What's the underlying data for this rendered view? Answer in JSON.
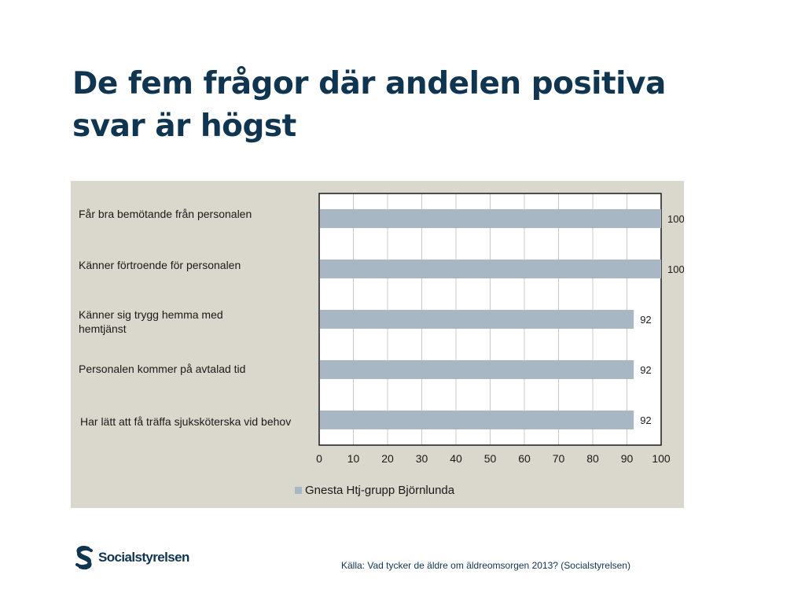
{
  "slide": {
    "title": "De fem frågor där andelen positiva svar är högst",
    "source": "Källa: Vad tycker de äldre om äldreomsorgen 2013? (Socialstyrelsen)",
    "logo_text": "Socialstyrelsen"
  },
  "colors": {
    "title": "#0f3550",
    "bar": "#a7b7c3",
    "panel": "#dad7cc"
  },
  "chart_data": {
    "type": "bar",
    "orientation": "horizontal",
    "categories": [
      "Får bra bemötande från personalen",
      "Känner förtroende för personalen",
      "Känner sig trygg hemma med hemtjänst",
      "Personalen kommer på avtalad tid",
      "Har lätt att få träffa sjuksköterska vid behov"
    ],
    "series": [
      {
        "name": "Gnesta Htj-grupp Björnlunda",
        "values": [
          100,
          100,
          92,
          92,
          92
        ]
      }
    ],
    "data_labels": [
      "100",
      "100",
      "92",
      "92",
      "92"
    ],
    "xlim": [
      0,
      100
    ],
    "x_ticks": [
      "0",
      "10",
      "20",
      "30",
      "40",
      "50",
      "60",
      "70",
      "80",
      "90",
      "100"
    ],
    "grid": true,
    "legend_position": "bottom"
  }
}
